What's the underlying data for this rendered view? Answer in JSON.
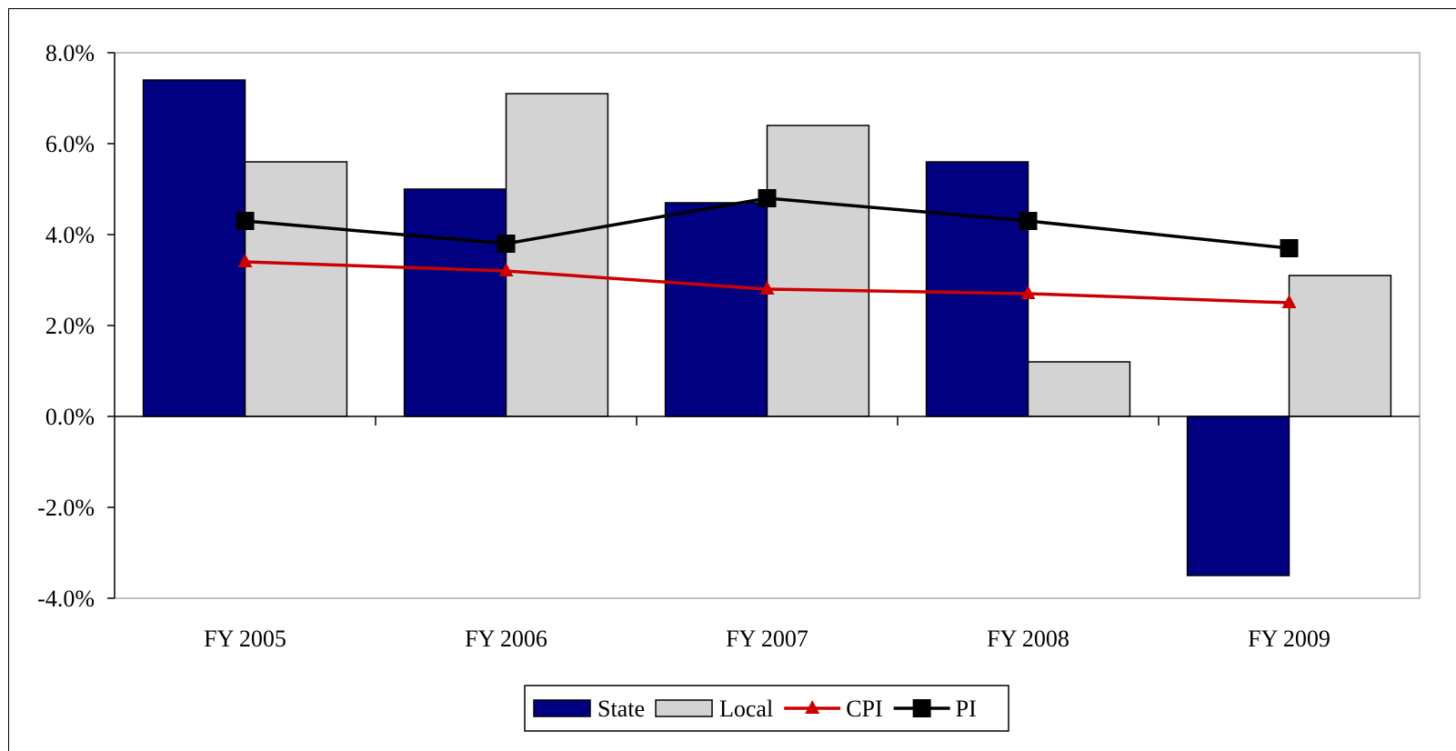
{
  "chart_data": {
    "type": "bar",
    "title": "",
    "xlabel": "",
    "ylabel": "",
    "categories": [
      "FY 2005",
      "FY 2006",
      "FY 2007",
      "FY 2008",
      "FY 2009"
    ],
    "ylim": [
      -4.0,
      8.0
    ],
    "y_ticks": [
      -4.0,
      -2.0,
      0.0,
      2.0,
      4.0,
      6.0,
      8.0
    ],
    "y_tick_labels": [
      "-4.0%",
      "-2.0%",
      "0.0%",
      "2.0%",
      "4.0%",
      "6.0%",
      "8.0%"
    ],
    "grid": false,
    "legend_position": "bottom",
    "series": [
      {
        "name": "State",
        "kind": "bar",
        "color": "#000080",
        "values": [
          7.4,
          5.0,
          4.7,
          5.6,
          -3.5
        ]
      },
      {
        "name": "Local",
        "kind": "bar",
        "color": "#d3d3d3",
        "values": [
          5.6,
          7.1,
          6.4,
          1.2,
          3.1
        ]
      },
      {
        "name": "CPI",
        "kind": "line",
        "marker": "triangle",
        "color": "#cc0000",
        "values": [
          3.4,
          3.2,
          2.8,
          2.7,
          2.5
        ]
      },
      {
        "name": "PI",
        "kind": "line",
        "marker": "square",
        "color": "#000000",
        "values": [
          4.3,
          3.8,
          4.8,
          4.3,
          3.7
        ]
      }
    ]
  }
}
